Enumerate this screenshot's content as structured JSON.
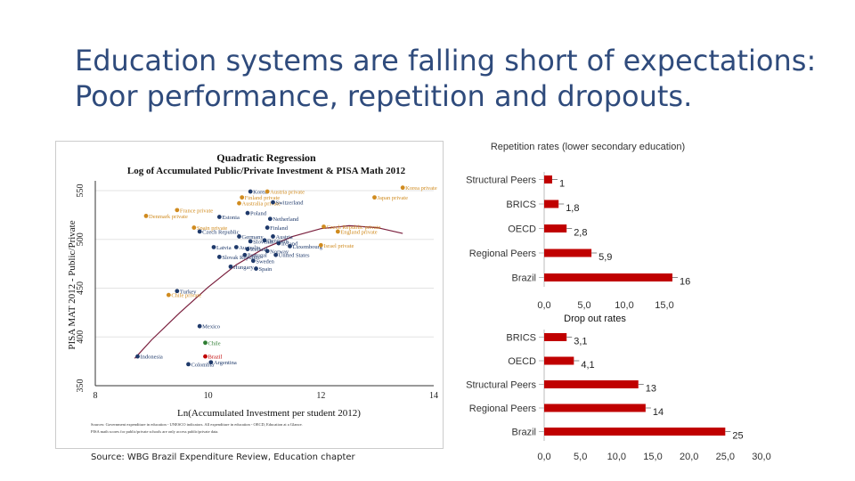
{
  "slide": {
    "title_line1": "Education systems are falling short of expectations:",
    "title_line2": "Poor performance, repetition and dropouts.",
    "source": "Source: WBG Brazil Expenditure Review, Education chapter"
  },
  "colors": {
    "title": "#2f4b7c",
    "bar": "#c00000",
    "public": "#1f3a6b",
    "private": "#d08b1f",
    "brazil": "#c00000",
    "chile": "#2e7d32"
  },
  "chart_data": [
    {
      "type": "scatter",
      "title": "Quadratic Regression",
      "subtitle": "Log of Accumulated Public/Private Investment & PISA Math 2012",
      "xlabel": "Ln(Accumulated Investment per student 2012)",
      "ylabel": "PISA MAT 2012 - Public/Private",
      "xlim": [
        8,
        14
      ],
      "ylim": [
        350,
        560
      ],
      "xticks": [
        "8",
        "10",
        "12",
        "14"
      ],
      "yticks": [
        "350",
        "400",
        "450",
        "500",
        "550"
      ],
      "footnote_line1": "Sources: Government expenditure in education - UNESCO indicators. All expenditure in education - OECD, Education at a Glance.",
      "footnote_line2": "PISA math scores for public/private schools are only access public/private data.",
      "points": [
        {
          "label": "Korea private",
          "x": 13.45,
          "y": 553,
          "group": "private"
        },
        {
          "label": "Japan private",
          "x": 12.95,
          "y": 543,
          "group": "private"
        },
        {
          "label": "Korea",
          "x": 10.75,
          "y": 549,
          "group": "public"
        },
        {
          "label": "Austria private",
          "x": 11.05,
          "y": 549,
          "group": "private"
        },
        {
          "label": "Finland private",
          "x": 10.6,
          "y": 543,
          "group": "private"
        },
        {
          "label": "Australia private",
          "x": 10.55,
          "y": 537,
          "group": "private"
        },
        {
          "label": "Switzerland",
          "x": 11.15,
          "y": 538,
          "group": "public"
        },
        {
          "label": "Poland",
          "x": 10.7,
          "y": 527,
          "group": "public"
        },
        {
          "label": "Estonia",
          "x": 10.2,
          "y": 523,
          "group": "public"
        },
        {
          "label": "France private",
          "x": 9.45,
          "y": 530,
          "group": "private"
        },
        {
          "label": "Denmark private",
          "x": 8.9,
          "y": 524,
          "group": "private"
        },
        {
          "label": "Spain private",
          "x": 9.75,
          "y": 512,
          "group": "private"
        },
        {
          "label": "Czech Republic",
          "x": 9.85,
          "y": 508,
          "group": "public"
        },
        {
          "label": "Netherland",
          "x": 11.1,
          "y": 521,
          "group": "public"
        },
        {
          "label": "Finland",
          "x": 11.05,
          "y": 512,
          "group": "public"
        },
        {
          "label": "Czech Republic private",
          "x": 12.05,
          "y": 513,
          "group": "private"
        },
        {
          "label": "England private",
          "x": 12.3,
          "y": 508,
          "group": "private"
        },
        {
          "label": "Germany",
          "x": 10.55,
          "y": 503,
          "group": "public"
        },
        {
          "label": "Austria",
          "x": 11.15,
          "y": 503,
          "group": "public"
        },
        {
          "label": "Slovenia",
          "x": 10.75,
          "y": 498,
          "group": "public"
        },
        {
          "label": "Denmark",
          "x": 11.0,
          "y": 499,
          "group": "public"
        },
        {
          "label": "Ireland",
          "x": 11.25,
          "y": 496,
          "group": "public"
        },
        {
          "label": "Luxembourg",
          "x": 11.45,
          "y": 493,
          "group": "public"
        },
        {
          "label": "Latvia",
          "x": 10.1,
          "y": 492,
          "group": "public"
        },
        {
          "label": "Australia",
          "x": 10.5,
          "y": 492,
          "group": "public"
        },
        {
          "label": "Israel private",
          "x": 12.0,
          "y": 494,
          "group": "private"
        },
        {
          "label": "Iceland",
          "x": 10.7,
          "y": 490,
          "group": "public"
        },
        {
          "label": "Portugal",
          "x": 10.65,
          "y": 484,
          "group": "public"
        },
        {
          "label": "Norway",
          "x": 11.05,
          "y": 488,
          "group": "public"
        },
        {
          "label": "United States",
          "x": 11.2,
          "y": 484,
          "group": "public"
        },
        {
          "label": "Slovak Republic",
          "x": 10.2,
          "y": 482,
          "group": "public"
        },
        {
          "label": "Sweden",
          "x": 10.8,
          "y": 478,
          "group": "public"
        },
        {
          "label": "Hungary",
          "x": 10.4,
          "y": 472,
          "group": "public"
        },
        {
          "label": "Spain",
          "x": 10.85,
          "y": 470,
          "group": "public"
        },
        {
          "label": "Turkey",
          "x": 9.45,
          "y": 447,
          "group": "public"
        },
        {
          "label": "Chile private",
          "x": 9.3,
          "y": 443,
          "group": "private"
        },
        {
          "label": "Mexico",
          "x": 9.85,
          "y": 411,
          "group": "public"
        },
        {
          "label": "Chile",
          "x": 9.95,
          "y": 394,
          "group": "chile"
        },
        {
          "label": "Indonesia",
          "x": 8.75,
          "y": 380,
          "group": "public"
        },
        {
          "label": "Brazil",
          "x": 9.95,
          "y": 380,
          "group": "brazil"
        },
        {
          "label": "Argentina",
          "x": 10.05,
          "y": 374,
          "group": "public"
        },
        {
          "label": "Colombia",
          "x": 9.65,
          "y": 372,
          "group": "public"
        }
      ],
      "fit_curve": {
        "x": [
          8.7,
          9.0,
          9.5,
          10.0,
          10.5,
          11.0,
          11.5,
          12.0,
          12.5,
          13.0,
          13.45
        ],
        "y": [
          378,
          397,
          425,
          451,
          474,
          491,
          503,
          511,
          514,
          512,
          506
        ]
      }
    },
    {
      "type": "bar",
      "orientation": "horizontal",
      "title": "Repetition rates (lower secondary education)",
      "categories": [
        "Structural Peers",
        "BRICS",
        "OECD",
        "Regional Peers",
        "Brazil"
      ],
      "values": [
        1,
        1.8,
        2.8,
        5.9,
        16
      ],
      "value_labels": [
        "1",
        "1,8",
        "2,8",
        "5,9",
        "16"
      ],
      "xlim": [
        0,
        15
      ],
      "xticks": [
        "0,0",
        "5,0",
        "10,0",
        "15,0"
      ]
    },
    {
      "type": "bar",
      "orientation": "horizontal",
      "title": "Drop out rates",
      "categories": [
        "BRICS",
        "OECD",
        "Structural Peers",
        "Regional Peers",
        "Brazil"
      ],
      "values": [
        3.1,
        4.1,
        13,
        14,
        25
      ],
      "value_labels": [
        "3,1",
        "4,1",
        "13",
        "14",
        "25"
      ],
      "xlim": [
        0,
        30
      ],
      "xticks": [
        "0,0",
        "5,0",
        "10,0",
        "15,0",
        "20,0",
        "25,0",
        "30,0"
      ]
    }
  ]
}
